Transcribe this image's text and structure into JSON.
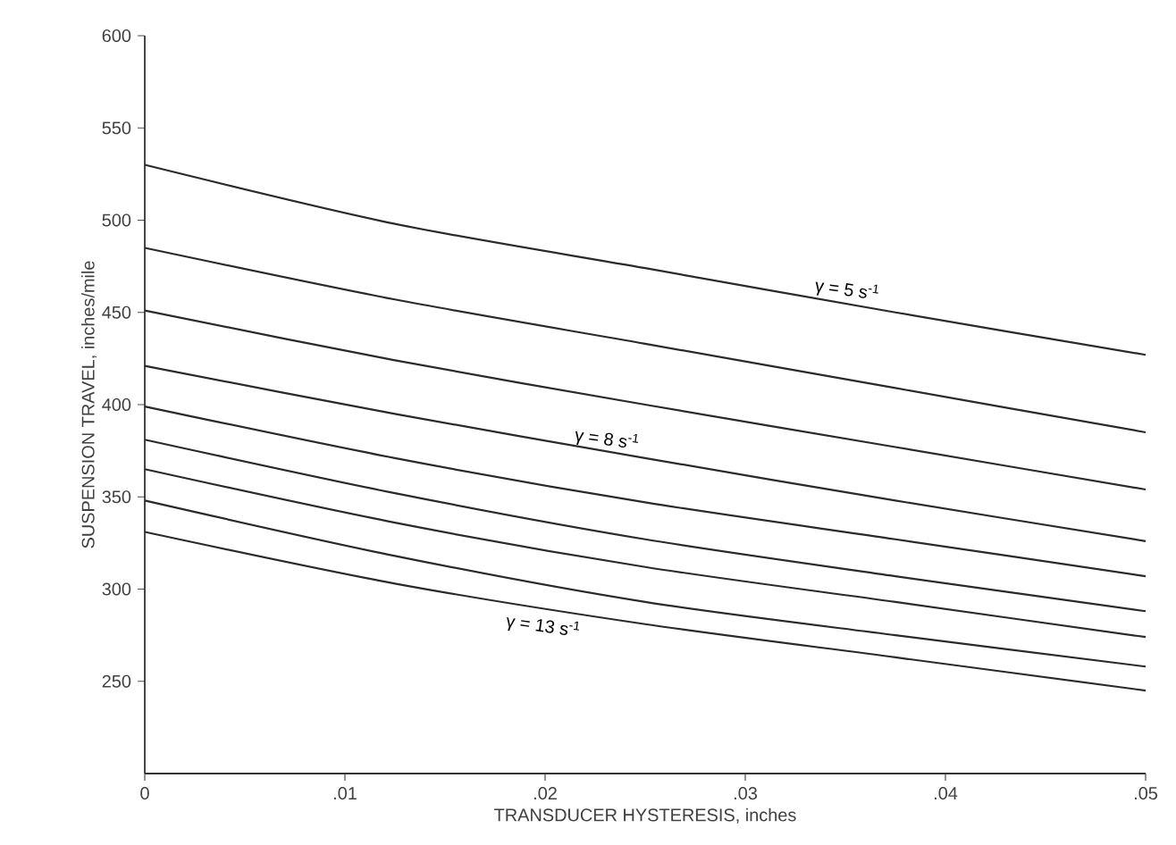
{
  "chart_data": {
    "type": "line",
    "xlabel": "TRANSDUCER HYSTERESIS, inches",
    "ylabel": "SUSPENSION TRAVEL, inches/mile",
    "x": [
      0,
      0.0125,
      0.025,
      0.0375,
      0.05
    ],
    "series": [
      {
        "color": "#2a2a2a",
        "values": [
          530,
          498,
          474,
          450,
          427
        ]
      },
      {
        "color": "#2a2a2a",
        "values": [
          485,
          457,
          433,
          409,
          385
        ]
      },
      {
        "color": "#2a2a2a",
        "values": [
          451,
          424,
          400,
          377,
          354
        ]
      },
      {
        "color": "#2a2a2a",
        "values": [
          421,
          395,
          371,
          348,
          326
        ]
      },
      {
        "color": "#2a2a2a",
        "values": [
          399,
          371,
          347,
          327,
          307
        ]
      },
      {
        "color": "#2a2a2a",
        "values": [
          381,
          352,
          327,
          307,
          288
        ]
      },
      {
        "color": "#2a2a2a",
        "values": [
          365,
          336,
          312,
          293,
          274
        ]
      },
      {
        "color": "#2a2a2a",
        "values": [
          348,
          318,
          293,
          275,
          258
        ]
      },
      {
        "color": "#2a2a2a",
        "values": [
          331,
          303,
          281,
          263,
          245
        ]
      }
    ],
    "annotations": [
      {
        "text": "γ = 5 s$^{-1}$",
        "x": 0.035,
        "y": 455
      },
      {
        "text": "γ = 8 s$^{-1}$",
        "x": 0.023,
        "y": 374
      },
      {
        "text": "γ = 13 s$^{-1}$",
        "x": 0.02,
        "y": 287
      }
    ],
    "xlim": [
      0,
      0.05
    ],
    "ylim": [
      200,
      600
    ],
    "xticks": [
      {
        "value": 0,
        "label": "0"
      },
      {
        "value": 0.01,
        "label": ".01"
      },
      {
        "value": 0.02,
        "label": ".02"
      },
      {
        "value": 0.03,
        "label": ".03"
      },
      {
        "value": 0.04,
        "label": ".04"
      },
      {
        "value": 0.05,
        "label": ".05"
      }
    ],
    "yticks": [
      250,
      300,
      350,
      400,
      450,
      500,
      550,
      600
    ],
    "grid": false,
    "marker": "none",
    "line_style": "solid"
  }
}
